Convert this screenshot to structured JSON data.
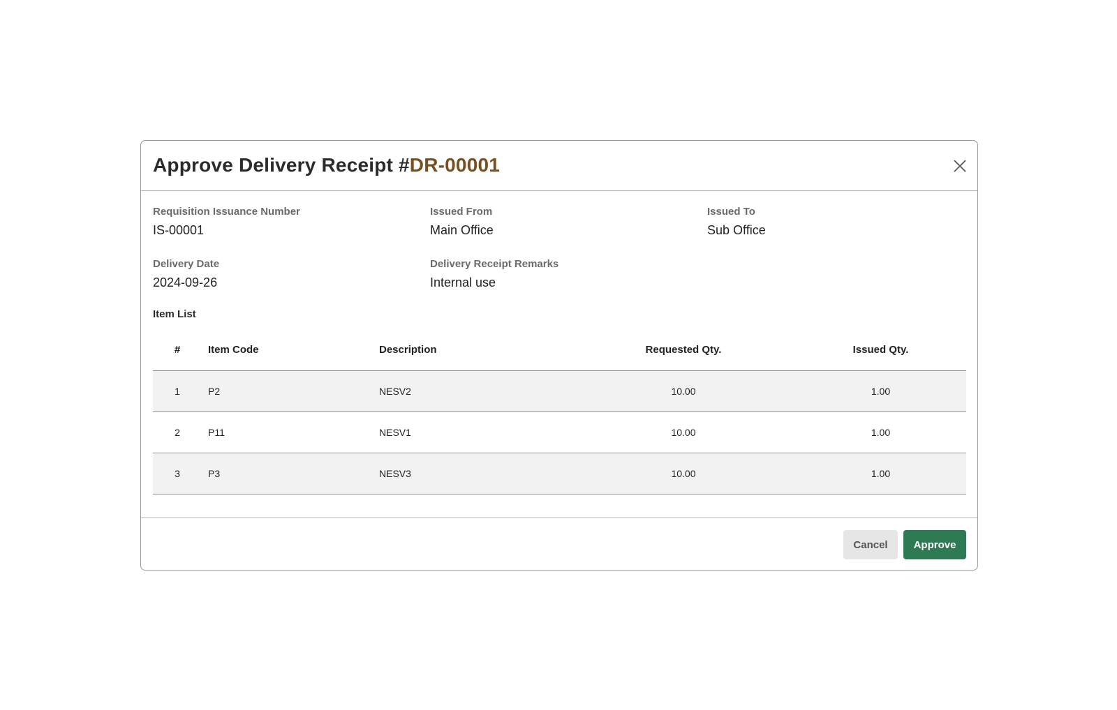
{
  "modal": {
    "title_prefix": "Approve Delivery Receipt #",
    "title_code": "DR-00001",
    "close_icon": "close-icon"
  },
  "fields": {
    "requisition_issuance_number": {
      "label": "Requisition Issuance Number",
      "value": "IS-00001"
    },
    "issued_from": {
      "label": "Issued From",
      "value": "Main Office"
    },
    "issued_to": {
      "label": "Issued To",
      "value": "Sub Office"
    },
    "delivery_date": {
      "label": "Delivery Date",
      "value": "2024-09-26"
    },
    "remarks": {
      "label": "Delivery Receipt Remarks",
      "value": "Internal use"
    }
  },
  "item_list": {
    "title": "Item List",
    "columns": [
      "#",
      "Item Code",
      "Description",
      "Requested Qty.",
      "Issued Qty."
    ],
    "rows": [
      [
        "1",
        "P2",
        "NESV2",
        "10.00",
        "1.00"
      ],
      [
        "2",
        "P11",
        "NESV1",
        "10.00",
        "1.00"
      ],
      [
        "3",
        "P3",
        "NESV3",
        "10.00",
        "1.00"
      ]
    ]
  },
  "footer": {
    "cancel_label": "Cancel",
    "approve_label": "Approve"
  },
  "colors": {
    "title_code": "#7a4f1e",
    "approve_button": "#2e7a52",
    "cancel_button": "#e6e6e6",
    "row_shade": "#f2f2f2"
  }
}
